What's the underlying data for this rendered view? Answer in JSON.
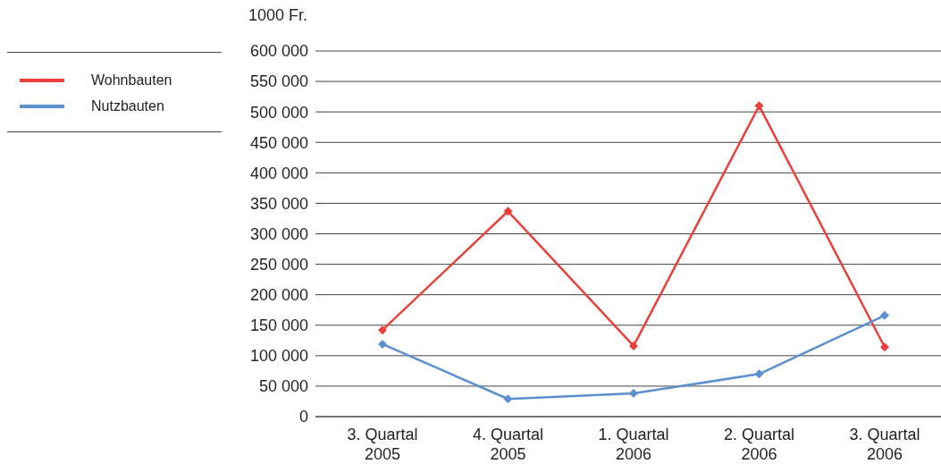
{
  "chart_data": {
    "type": "line",
    "ylabel": "1000 Fr.",
    "categories": [
      "3. Quartal\n2005",
      "4. Quartal\n2005",
      "1. Quartal\n2006",
      "2. Quartal\n2006",
      "3. Quartal\n2006"
    ],
    "series": [
      {
        "name": "Wohnbauten",
        "color": "#e8413c",
        "values": [
          142000,
          337000,
          116000,
          510000,
          114000
        ]
      },
      {
        "name": "Nutzbauten",
        "color": "#5b8fd0",
        "values": [
          119000,
          29000,
          38000,
          70000,
          166000
        ]
      }
    ],
    "ylim": [
      0,
      600000
    ],
    "yticks": [
      {
        "value": 0,
        "label": "0"
      },
      {
        "value": 50000,
        "label": "50 000"
      },
      {
        "value": 100000,
        "label": "100 000"
      },
      {
        "value": 150000,
        "label": "150 000"
      },
      {
        "value": 200000,
        "label": "200 000"
      },
      {
        "value": 250000,
        "label": "250 000"
      },
      {
        "value": 300000,
        "label": "300 000"
      },
      {
        "value": 350000,
        "label": "350 000"
      },
      {
        "value": 400000,
        "label": "400 000"
      },
      {
        "value": 450000,
        "label": "450 000"
      },
      {
        "value": 500000,
        "label": "500 000"
      },
      {
        "value": 550000,
        "label": "550 000"
      },
      {
        "value": 600000,
        "label": "600 000"
      }
    ],
    "grid": "y",
    "legend": "left",
    "marker": "diamond",
    "line_style": "solid"
  }
}
